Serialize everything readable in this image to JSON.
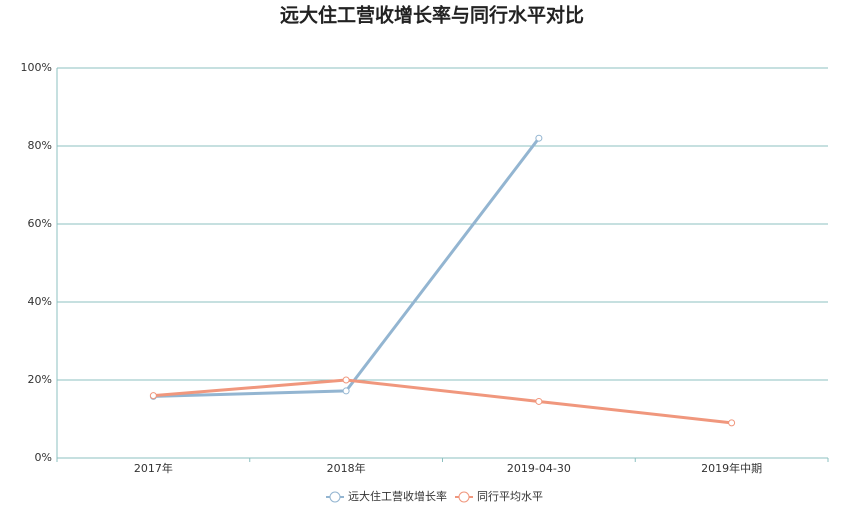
{
  "chart_data": {
    "type": "line",
    "title": "远大住工营收增长率与同行水平对比",
    "categories": [
      "2017年",
      "2018年",
      "2019-04-30",
      "2019年中期"
    ],
    "series": [
      {
        "name": "远大住工营收增长率",
        "color": "#93b5d1",
        "values": [
          15.8,
          17.2,
          82,
          null
        ]
      },
      {
        "name": "同行平均水平",
        "color": "#f0977d",
        "values": [
          16,
          20,
          14.5,
          9
        ]
      }
    ],
    "ylim": [
      0,
      100
    ],
    "yticks": [
      {
        "value": 0,
        "label": "0%"
      },
      {
        "value": 20,
        "label": "20%"
      },
      {
        "value": 40,
        "label": "40%"
      },
      {
        "value": 60,
        "label": "60%"
      },
      {
        "value": 80,
        "label": "80%"
      },
      {
        "value": 100,
        "label": "100%"
      }
    ],
    "grid": true
  }
}
